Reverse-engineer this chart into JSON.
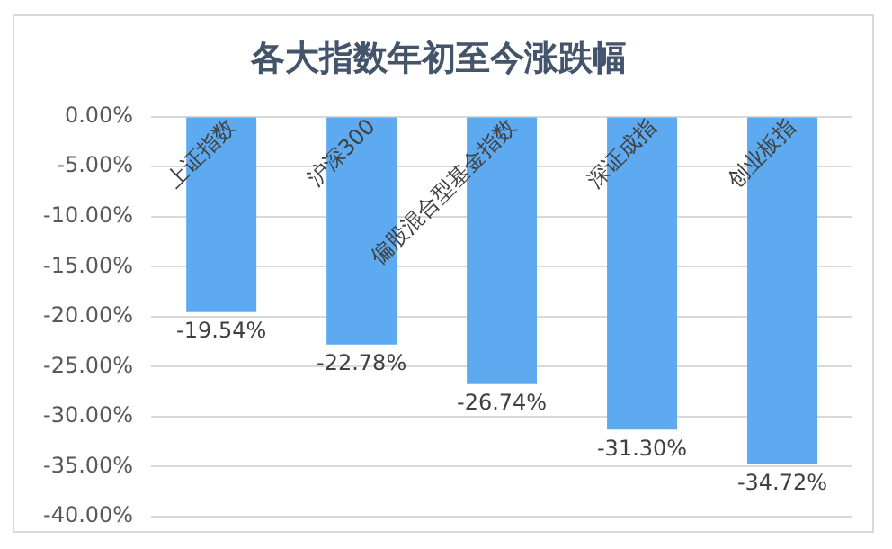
{
  "chart_data": {
    "type": "bar",
    "title": "各大指数年初至今涨跌幅",
    "categories": [
      "上证指数",
      "沪深300",
      "偏股混合型基金指数",
      "深证成指",
      "创业板指"
    ],
    "values": [
      -19.54,
      -22.78,
      -26.74,
      -31.3,
      -34.72
    ],
    "value_labels": [
      "-19.54%",
      "-22.78%",
      "-26.74%",
      "-31.30%",
      "-34.72%"
    ],
    "color": "#5eaaf0",
    "ylim": [
      -40,
      0
    ],
    "yticks": [
      {
        "value": 0,
        "label": "0.00%"
      },
      {
        "value": -5,
        "label": "-5.00%"
      },
      {
        "value": -10,
        "label": "-10.00%"
      },
      {
        "value": -15,
        "label": "-15.00%"
      },
      {
        "value": -20,
        "label": "-20.00%"
      },
      {
        "value": -25,
        "label": "-25.00%"
      },
      {
        "value": -30,
        "label": "-30.00%"
      },
      {
        "value": -35,
        "label": "-35.00%"
      },
      {
        "value": -40,
        "label": "-40.00%"
      }
    ],
    "grid": "y",
    "legend": false
  }
}
